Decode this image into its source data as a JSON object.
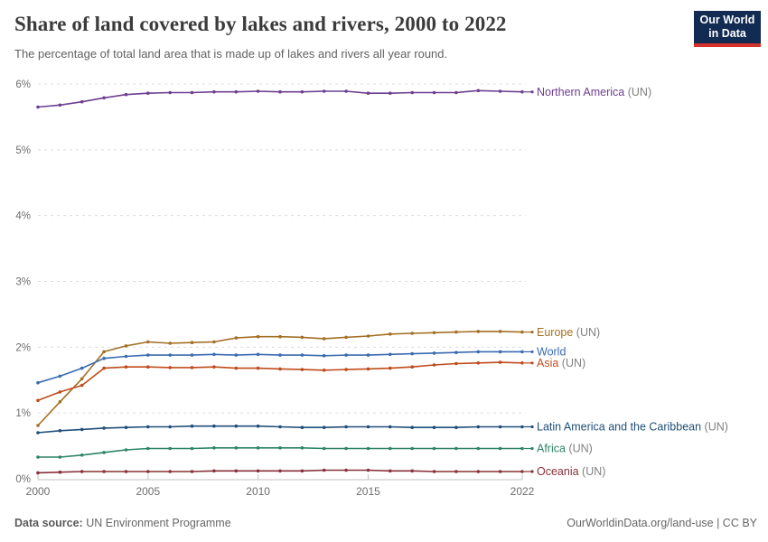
{
  "header": {
    "title": "Share of land covered by lakes and rivers, 2000 to 2022",
    "subtitle": "The percentage of total land area that is made up of lakes and rivers all year round.",
    "logo": {
      "line1": "Our World",
      "line2": "in Data",
      "bg_color": "#122b52",
      "accent_color": "#d3312a"
    }
  },
  "footer": {
    "datasource_label": "Data source:",
    "datasource_value": " UN Environment Programme",
    "right": "OurWorldinData.org/land-use | CC BY"
  },
  "chart_data": {
    "type": "line",
    "title": "Share of land covered by lakes and rivers, 2000 to 2022",
    "xlabel": "",
    "ylabel": "",
    "xlim": [
      2000,
      2022
    ],
    "ylim": [
      0,
      6
    ],
    "grid": "horizontal-dashed",
    "legend_position": "right-edge-labels",
    "x": [
      2000,
      2001,
      2002,
      2003,
      2004,
      2005,
      2006,
      2007,
      2008,
      2009,
      2010,
      2011,
      2012,
      2013,
      2014,
      2015,
      2016,
      2017,
      2018,
      2019,
      2020,
      2021,
      2022
    ],
    "x_tick_labels": [
      "2000",
      "2005",
      "2010",
      "2015",
      "2022"
    ],
    "x_tick_values": [
      2000,
      2005,
      2010,
      2015,
      2022
    ],
    "y_ticks": [
      {
        "value": 0,
        "label": "0%"
      },
      {
        "value": 1,
        "label": "1%"
      },
      {
        "value": 2,
        "label": "2%"
      },
      {
        "value": 3,
        "label": "3%"
      },
      {
        "value": 4,
        "label": "4%"
      },
      {
        "value": 5,
        "label": "5%"
      },
      {
        "value": 6,
        "label": "6%"
      }
    ],
    "series": [
      {
        "name": "Northern America",
        "suffix": " (UN)",
        "color": "#6d3e91",
        "values": [
          5.65,
          5.68,
          5.73,
          5.79,
          5.84,
          5.86,
          5.87,
          5.87,
          5.88,
          5.88,
          5.89,
          5.88,
          5.88,
          5.89,
          5.89,
          5.86,
          5.86,
          5.87,
          5.87,
          5.87,
          5.9,
          5.89,
          5.88
        ]
      },
      {
        "name": "Europe",
        "suffix": " (UN)",
        "color": "#a36f23",
        "values": [
          0.81,
          1.17,
          1.52,
          1.93,
          2.02,
          2.08,
          2.06,
          2.07,
          2.08,
          2.14,
          2.16,
          2.16,
          2.15,
          2.13,
          2.15,
          2.17,
          2.2,
          2.21,
          2.22,
          2.23,
          2.24,
          2.24,
          2.23
        ]
      },
      {
        "name": "World",
        "suffix": "",
        "color": "#3a6bb0",
        "values": [
          1.46,
          1.56,
          1.68,
          1.83,
          1.86,
          1.88,
          1.88,
          1.88,
          1.89,
          1.88,
          1.89,
          1.88,
          1.88,
          1.87,
          1.88,
          1.88,
          1.89,
          1.9,
          1.91,
          1.92,
          1.93,
          1.93,
          1.93
        ]
      },
      {
        "name": "Asia",
        "suffix": " (UN)",
        "color": "#bf4b1c",
        "values": [
          1.19,
          1.32,
          1.42,
          1.68,
          1.7,
          1.7,
          1.69,
          1.69,
          1.7,
          1.68,
          1.68,
          1.67,
          1.66,
          1.65,
          1.66,
          1.67,
          1.68,
          1.7,
          1.73,
          1.75,
          1.76,
          1.77,
          1.76
        ]
      },
      {
        "name": "Latin America and the Caribbean",
        "suffix": " (UN)",
        "color": "#1f4e79",
        "values": [
          0.7,
          0.73,
          0.75,
          0.77,
          0.78,
          0.79,
          0.79,
          0.8,
          0.8,
          0.8,
          0.8,
          0.79,
          0.78,
          0.78,
          0.79,
          0.79,
          0.79,
          0.78,
          0.78,
          0.78,
          0.79,
          0.79,
          0.79
        ]
      },
      {
        "name": "Africa",
        "suffix": " (UN)",
        "color": "#2c8465",
        "values": [
          0.33,
          0.33,
          0.36,
          0.4,
          0.44,
          0.46,
          0.46,
          0.46,
          0.47,
          0.47,
          0.47,
          0.47,
          0.47,
          0.46,
          0.46,
          0.46,
          0.46,
          0.46,
          0.46,
          0.46,
          0.46,
          0.46,
          0.46
        ]
      },
      {
        "name": "Oceania",
        "suffix": " (UN)",
        "color": "#883039",
        "values": [
          0.09,
          0.1,
          0.11,
          0.11,
          0.11,
          0.11,
          0.11,
          0.11,
          0.12,
          0.12,
          0.12,
          0.12,
          0.12,
          0.13,
          0.13,
          0.13,
          0.12,
          0.12,
          0.11,
          0.11,
          0.11,
          0.11,
          0.11
        ]
      }
    ],
    "style": {
      "grid_color": "#dcdcdc",
      "axis_color": "#c2c2c2",
      "tick_text_color": "#6e6e6e",
      "suffix_text_color": "#818181"
    }
  }
}
